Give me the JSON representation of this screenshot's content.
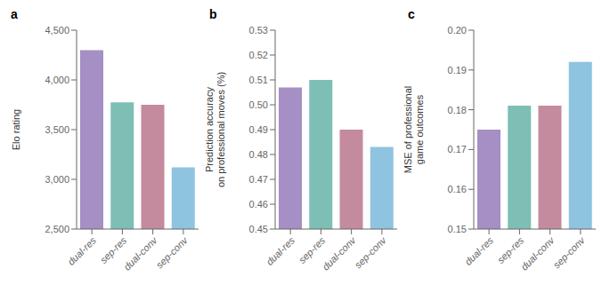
{
  "chart_data": [
    {
      "type": "bar",
      "title": "a",
      "categories": [
        "dual-res",
        "sep-res",
        "dual-conv",
        "sep-conv"
      ],
      "values": [
        4300,
        3775,
        3750,
        3120
      ],
      "colors": [
        "#a58fc4",
        "#7dbfb5",
        "#c48a9e",
        "#8ec4e0"
      ],
      "ylabel": "Elo rating",
      "ylim": [
        2500,
        4500
      ],
      "yticks": [
        {
          "value": 2500,
          "label": "2,500"
        },
        {
          "value": 3000,
          "label": "3,000"
        },
        {
          "value": 3500,
          "label": "3,500"
        },
        {
          "value": 4000,
          "label": "4,000"
        },
        {
          "value": 4500,
          "label": "4,500"
        }
      ],
      "grid": false
    },
    {
      "type": "bar",
      "title": "b",
      "categories": [
        "dual-res",
        "sep-res",
        "dual-conv",
        "sep-conv"
      ],
      "values": [
        0.507,
        0.51,
        0.49,
        0.483
      ],
      "colors": [
        "#a58fc4",
        "#7dbfb5",
        "#c48a9e",
        "#8ec4e0"
      ],
      "ylabel": "Prediction accuracy\non professional moves (%)",
      "ylim": [
        0.45,
        0.53
      ],
      "yticks": [
        0.45,
        0.46,
        0.47,
        0.48,
        0.49,
        {
          "value": 0.5,
          "label": "0.50"
        },
        0.51,
        0.52,
        0.53
      ],
      "grid": false
    },
    {
      "type": "bar",
      "title": "c",
      "categories": [
        "dual-res",
        "sep-res",
        "dual-conv",
        "sep-conv"
      ],
      "values": [
        0.175,
        0.181,
        0.181,
        0.192
      ],
      "colors": [
        "#a58fc4",
        "#7dbfb5",
        "#c48a9e",
        "#8ec4e0"
      ],
      "ylabel": "MSE of professional\ngame outcomes",
      "ylim": [
        0.15,
        0.2
      ],
      "yticks": [
        0.15,
        0.16,
        0.17,
        0.18,
        0.19,
        {
          "value": 0.2,
          "label": "0.20"
        }
      ],
      "grid": false
    }
  ]
}
